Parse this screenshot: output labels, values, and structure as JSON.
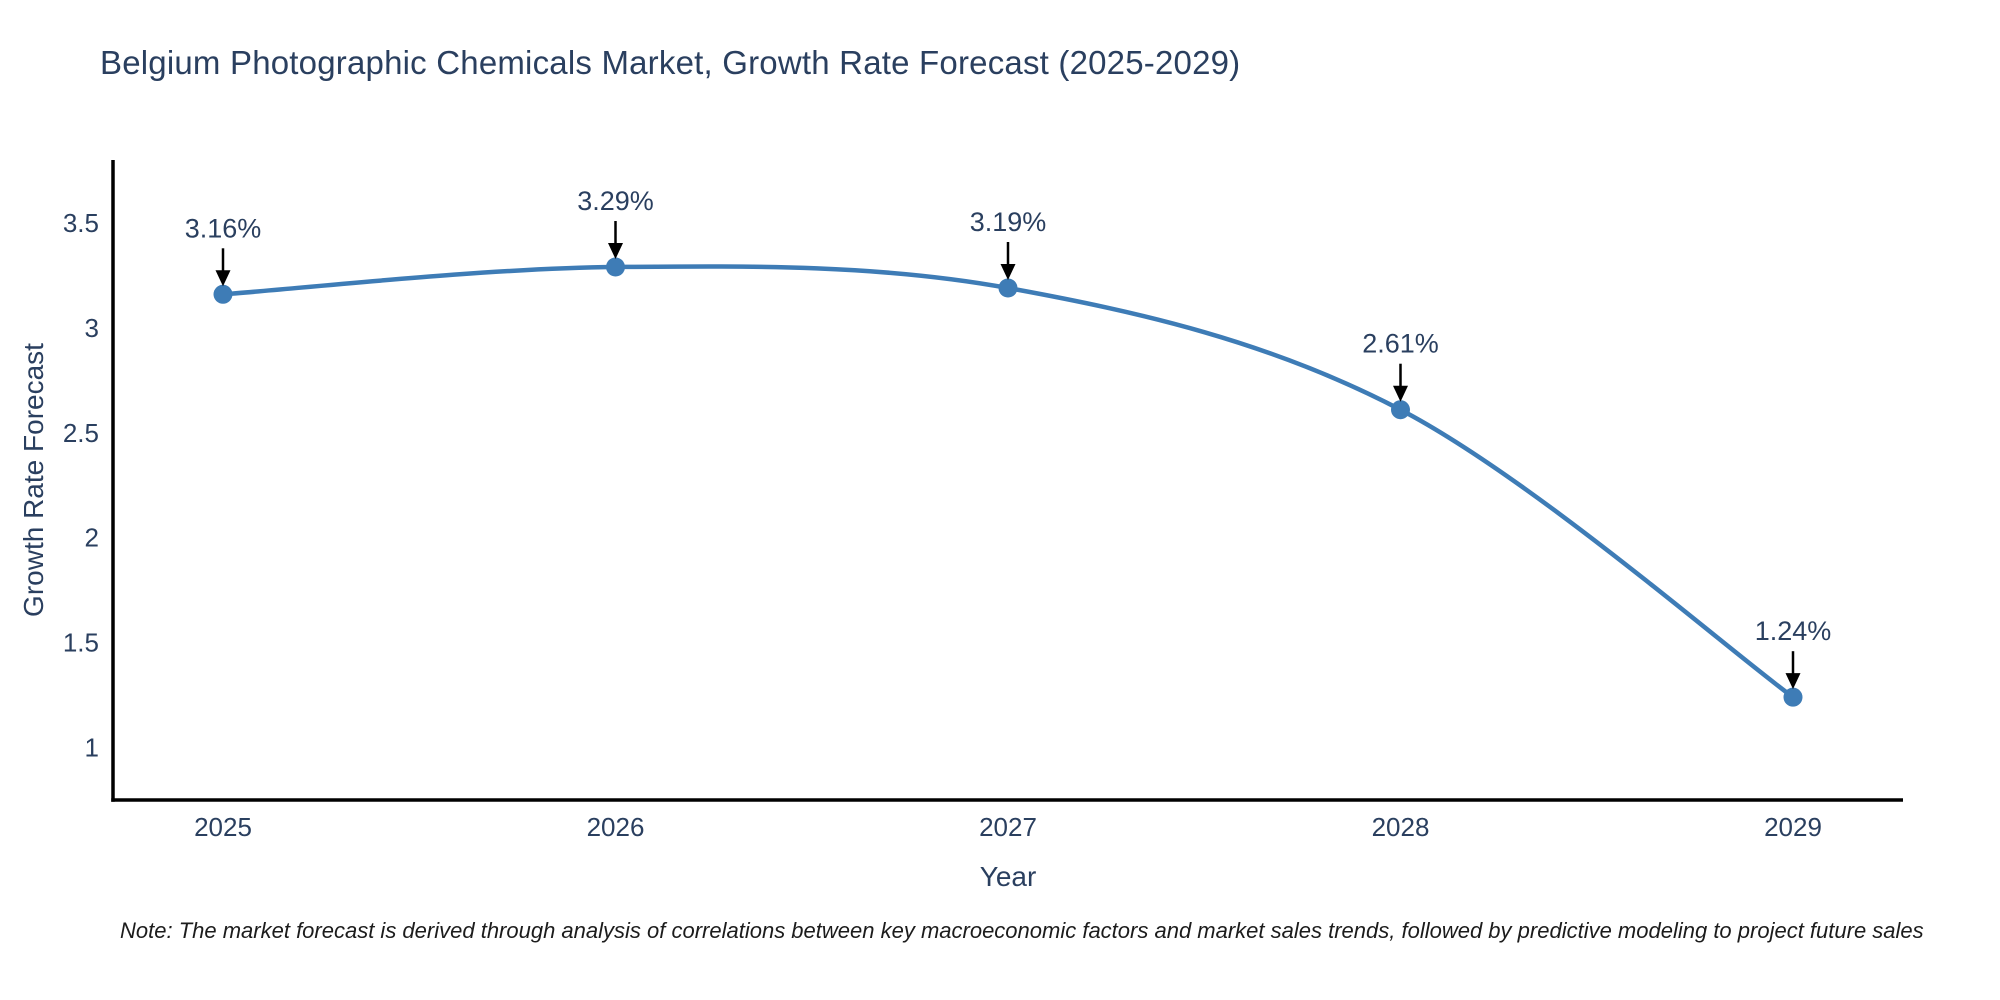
{
  "note": "Note: The market forecast is derived through analysis of correlations between key macroeconomic factors and market sales trends, followed by predictive modeling to project future sales",
  "chart_data": {
    "type": "line",
    "title": "Belgium Photographic Chemicals Market, Growth Rate Forecast (2025-2029)",
    "xlabel": "Year",
    "ylabel": "Growth Rate Forecast",
    "x": [
      2025,
      2026,
      2027,
      2028,
      2029
    ],
    "values": [
      3.16,
      3.29,
      3.19,
      2.61,
      1.24
    ],
    "point_labels": [
      "3.16%",
      "3.29%",
      "3.19%",
      "2.61%",
      "1.24%"
    ],
    "x_tick_labels": [
      "2025",
      "2026",
      "2027",
      "2028",
      "2029"
    ],
    "y_ticks": [
      1,
      1.5,
      2,
      2.5,
      3,
      3.5
    ],
    "y_tick_labels": [
      "1",
      "1.5",
      "2",
      "2.5",
      "3",
      "3.5"
    ],
    "ylim": [
      0.75,
      3.8
    ],
    "line_shape": "spline",
    "grid": false,
    "legend": "none",
    "colors": {
      "line": "#3e7cb6",
      "marker": "#3e7cb6",
      "text": "#2a3f5f",
      "axis": "#000000",
      "arrow": "#000000"
    }
  }
}
